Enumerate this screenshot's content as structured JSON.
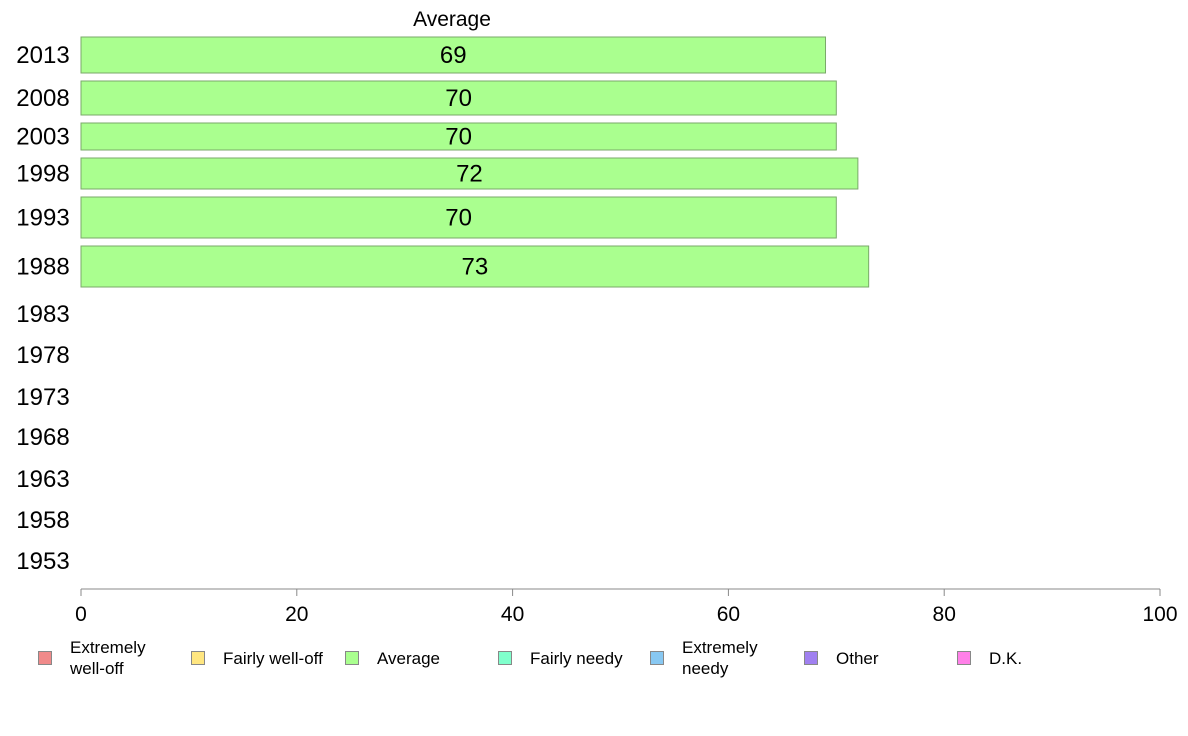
{
  "chart_data": {
    "type": "bar",
    "orientation": "horizontal",
    "stacked": true,
    "title": "Average",
    "categories": [
      "2013",
      "2008",
      "2003",
      "1998",
      "1993",
      "1988",
      "1983",
      "1978",
      "1973",
      "1968",
      "1963",
      "1958",
      "1953"
    ],
    "series": [
      {
        "name": "Average",
        "color": "#aaff8f",
        "values": [
          69,
          70,
          70,
          72,
          70,
          73,
          null,
          null,
          null,
          null,
          null,
          null,
          null
        ]
      }
    ],
    "data_labels": [
      "69",
      "70",
      "70",
      "72",
      "70",
      "73"
    ],
    "xlim": [
      0,
      100
    ],
    "xticks": [
      "0",
      "20",
      "40",
      "60",
      "80",
      "100"
    ],
    "grid": false,
    "legend_position": "bottom"
  },
  "legend": [
    {
      "label": "Extremely well-off",
      "color": "#f08a8a"
    },
    {
      "label": "Fairly well-off",
      "color": "#ffe680"
    },
    {
      "label": "Average",
      "color": "#aaff8f"
    },
    {
      "label": "Fairly needy",
      "color": "#80ffcc"
    },
    {
      "label": "Extremely needy",
      "color": "#88c8f2"
    },
    {
      "label": "Other",
      "color": "#a080f0"
    },
    {
      "label": "D.K.",
      "color": "#ff80e8"
    }
  ]
}
